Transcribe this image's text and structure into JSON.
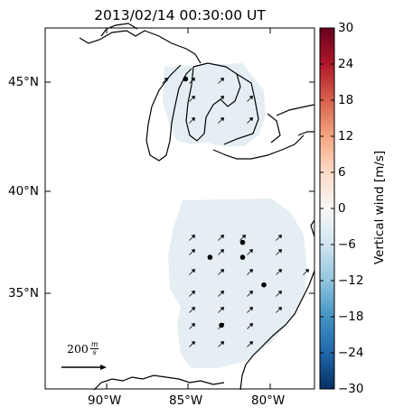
{
  "title": "2013/02/14 00:30:00 UT",
  "lat_ticks": [
    "45°N",
    "40°N",
    "35°N"
  ],
  "lon_ticks": [
    "90°W",
    "85°W",
    "80°W"
  ],
  "colorbar": {
    "label": "Vertical wind [m/s]",
    "ticks": [
      "30",
      "24",
      "18",
      "12",
      "6",
      "0",
      "−6",
      "−12",
      "−18",
      "−24",
      "−30"
    ],
    "vmin": -30,
    "vmax": 30,
    "colormap": "RdBu_r",
    "colors": [
      "#053061",
      "#2166ac",
      "#4393c3",
      "#92c5de",
      "#d1e5f0",
      "#f7f7f7",
      "#fddbc7",
      "#f4a582",
      "#d6604d",
      "#b2182b",
      "#67001f"
    ]
  },
  "scale_arrow": {
    "value": "200",
    "unit_num": "m",
    "unit_den": "s"
  },
  "field_color": "#e4eef3",
  "map_extent": {
    "lon_min": -93.8,
    "lon_max": -77.3,
    "lat_min": 30.4,
    "lat_max": 47.4
  },
  "stations": [
    {
      "lon": -85.2,
      "lat": 45.0
    },
    {
      "lon": -81.7,
      "lat": 37.3
    },
    {
      "lon": -83.7,
      "lat": 36.6
    },
    {
      "lon": -81.7,
      "lat": 36.6
    },
    {
      "lon": -80.4,
      "lat": 35.3
    },
    {
      "lon": -83.0,
      "lat": 33.4
    }
  ]
}
